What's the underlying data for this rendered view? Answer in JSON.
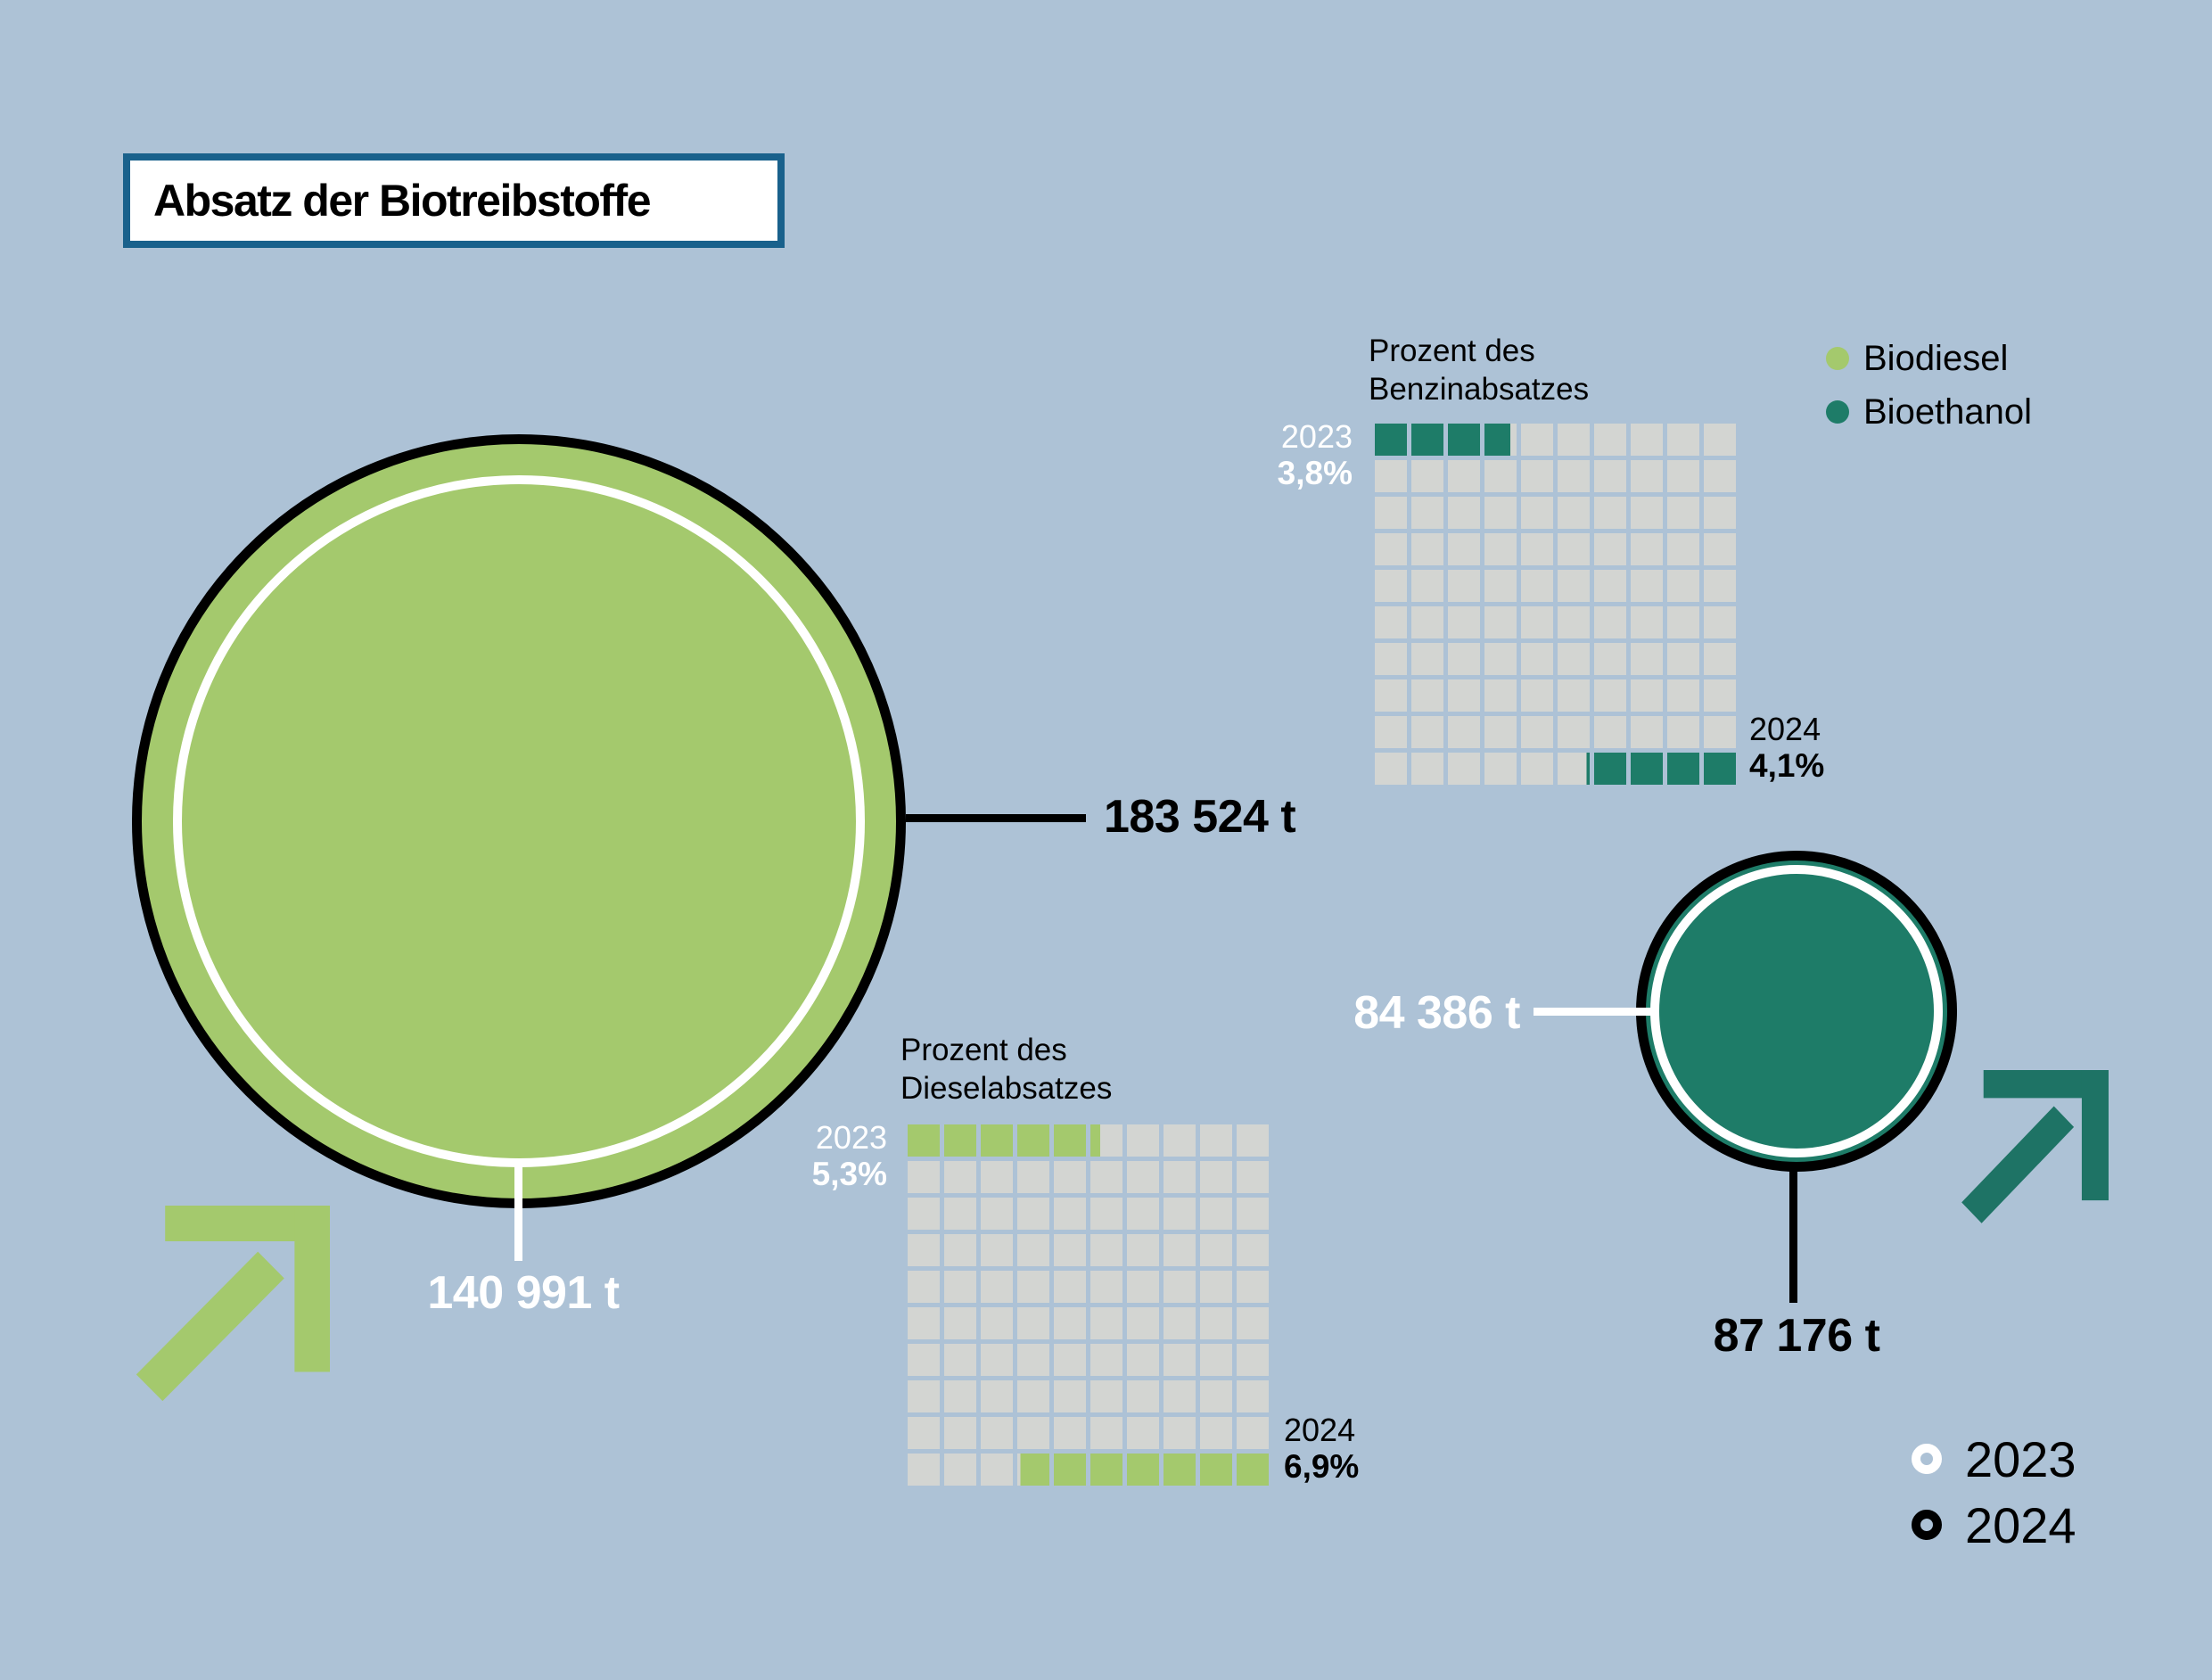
{
  "title": "Absatz der Biotreibstoffe",
  "colors": {
    "background": "#adc2d6",
    "biodiesel_green": "#a4c96d",
    "bioethanol_teal": "#1e7c68",
    "arrow_green": "#a4c96d",
    "arrow_teal": "#1e7365",
    "waffle_empty": "#d3d5d2",
    "title_border": "#19618c"
  },
  "biodiesel": {
    "label_2024": "183 524 t",
    "label_2023": "140 991 t"
  },
  "bioethanol": {
    "label_2023": "84 386 t",
    "label_2024": "87 176 t"
  },
  "waffle_benzin": {
    "title_line1": "Prozent des",
    "title_line2": "Benzinabsatzes",
    "year_2023": "2023",
    "pct_2023": "3,8%",
    "year_2024": "2024",
    "pct_2024": "4,1%"
  },
  "waffle_diesel": {
    "title_line1": "Prozent des",
    "title_line2": "Dieselabsatzes",
    "year_2023": "2023",
    "pct_2023": "5,3%",
    "year_2024": "2024",
    "pct_2024": "6,9%"
  },
  "fuel_legend": {
    "items": [
      {
        "label": "Biodiesel"
      },
      {
        "label": "Bioethanol"
      }
    ]
  },
  "year_legend": {
    "items": [
      {
        "label": "2023"
      },
      {
        "label": "2024"
      }
    ]
  },
  "chart_data": [
    {
      "type": "bubble",
      "name": "Biodiesel Absatz",
      "unit": "t",
      "series": [
        {
          "name": "2023",
          "value": 140991
        },
        {
          "name": "2024",
          "value": 183524
        }
      ],
      "legend_note": "2023 = white ring, 2024 = black ring"
    },
    {
      "type": "bubble",
      "name": "Bioethanol Absatz",
      "unit": "t",
      "series": [
        {
          "name": "2023",
          "value": 84386
        },
        {
          "name": "2024",
          "value": 87176
        }
      ],
      "legend_note": "2023 = white ring, 2024 = black ring"
    },
    {
      "type": "waffle",
      "name": "Prozent des Benzinabsatzes",
      "unit": "%",
      "grid": [
        10,
        10
      ],
      "cell_value_pct": 1,
      "series": [
        {
          "name": "2023",
          "value": 3.8,
          "fill_from": "top-left"
        },
        {
          "name": "2024",
          "value": 4.1,
          "fill_from": "bottom-right"
        }
      ]
    },
    {
      "type": "waffle",
      "name": "Prozent des Dieselabsatzes",
      "unit": "%",
      "grid": [
        10,
        10
      ],
      "cell_value_pct": 1,
      "series": [
        {
          "name": "2023",
          "value": 5.3,
          "fill_from": "top-left"
        },
        {
          "name": "2024",
          "value": 6.9,
          "fill_from": "bottom-right"
        }
      ]
    }
  ]
}
